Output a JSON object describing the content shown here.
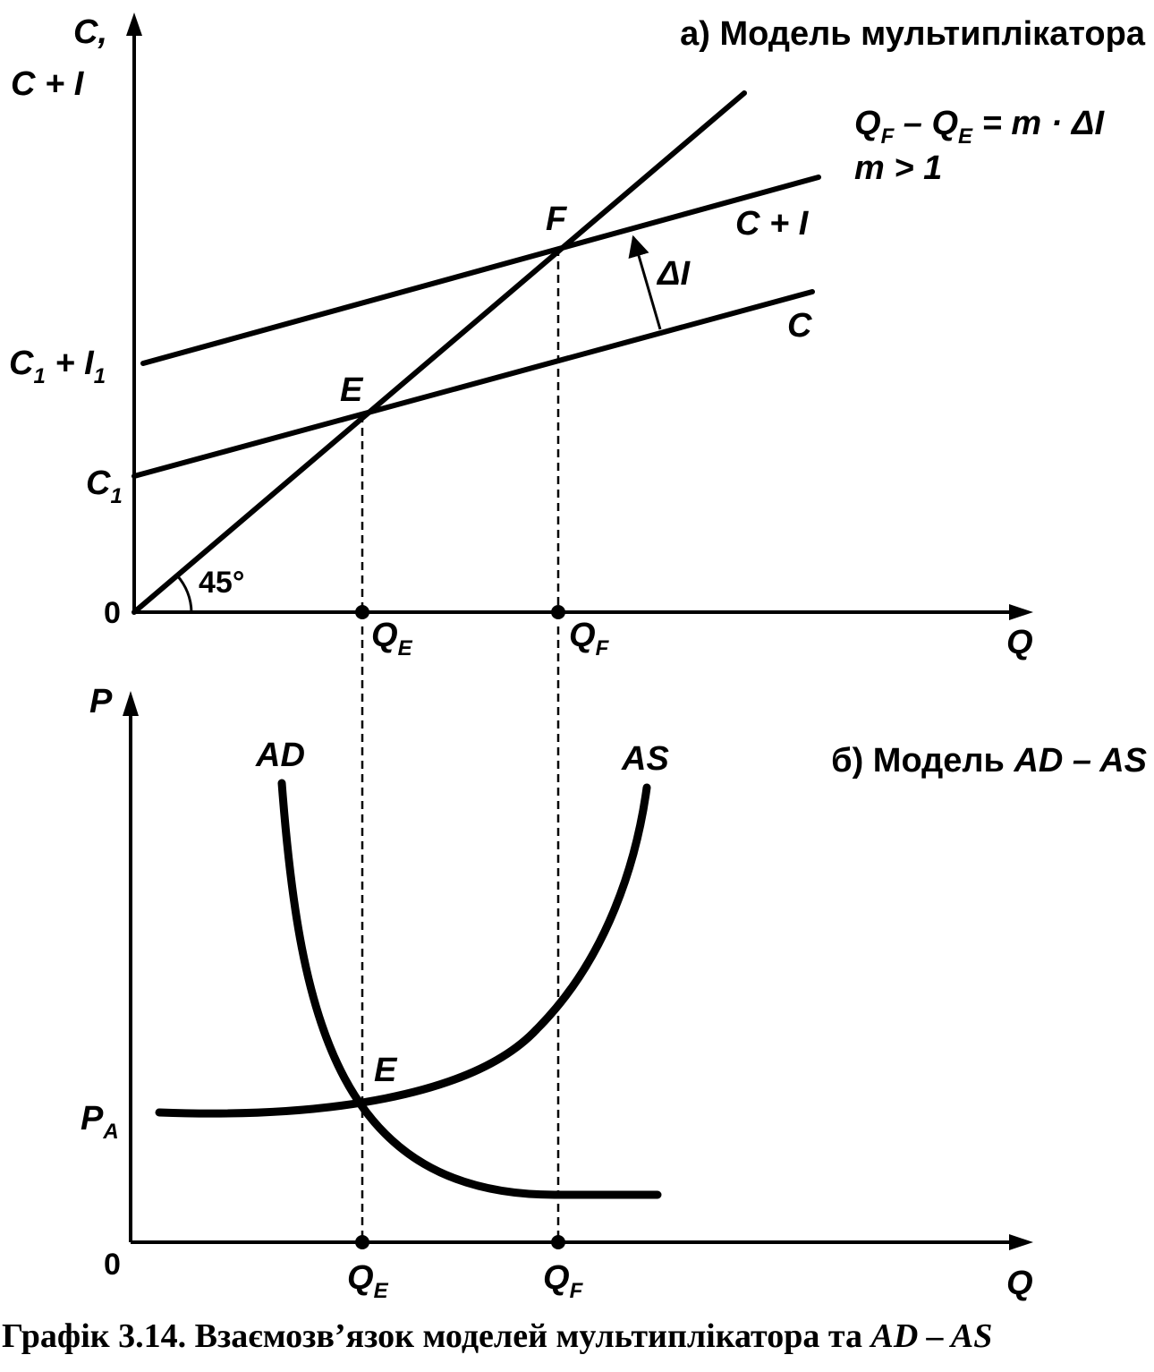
{
  "top": {
    "title": "а) Модель мультиплікатора",
    "y_axis_label_1": "C,",
    "y_axis_label_2": "C + I",
    "x_axis_label": "Q",
    "origin": "0",
    "angle_label": "45°",
    "c1i1": {
      "base": "C",
      "sub1": "1",
      "plus": " + I",
      "sub2": "1"
    },
    "c1": {
      "base": "C",
      "sub": "1"
    },
    "point_e": "E",
    "point_f": "F",
    "line_ci": "C + I",
    "line_c": "C",
    "delta_i": "ΔI",
    "formula": {
      "qf": "Q",
      "qf_sub": "F",
      "minus": " – ",
      "qe": "Q",
      "qe_sub": "E",
      "rest": " = m · ΔI"
    },
    "condition": "m > 1",
    "qe": {
      "base": "Q",
      "sub": "E"
    },
    "qf": {
      "base": "Q",
      "sub": "F"
    }
  },
  "bottom": {
    "title_prefix": "б) Модель ",
    "title_italic": "AD – AS",
    "y_axis_label": "P",
    "x_axis_label": "Q",
    "origin": "0",
    "curve_ad": "AD",
    "curve_as": "AS",
    "point_e": "E",
    "pa": {
      "base": "P",
      "sub": "A"
    },
    "qe": {
      "base": "Q",
      "sub": "E"
    },
    "qf": {
      "base": "Q",
      "sub": "F"
    }
  },
  "caption": {
    "text": "Графік 3.14. Взаємозв’язок моделей мультиплікатора та ",
    "italic": "AD – AS"
  }
}
